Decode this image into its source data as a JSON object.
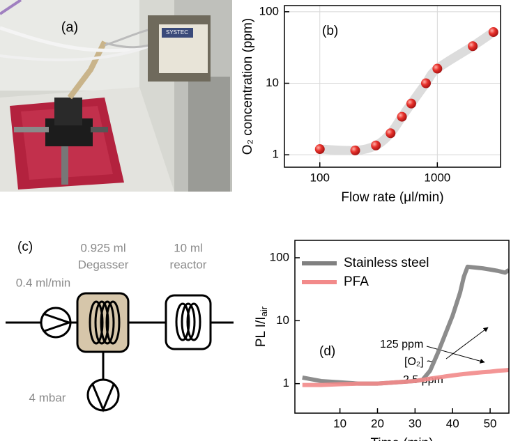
{
  "photo": {
    "label": "(a)",
    "device_label": "SYSTEC"
  },
  "diagram": {
    "label": "(c)",
    "flow": "0.4 ml/min",
    "degasser_volume": "0.925 ml",
    "degasser": "Degasser",
    "reactor_volume": "10 ml",
    "reactor": "reactor",
    "vacuum": "4 mbar"
  },
  "chart_data": [
    {
      "type": "scatter",
      "annotations": [
        "(b)"
      ],
      "xlabel": "Flow rate (μl/min)",
      "ylabel": "O₂ concentration (ppm)",
      "x": [
        100,
        200,
        300,
        400,
        500,
        600,
        800,
        1000,
        2000,
        3000
      ],
      "series": [
        {
          "name": "O₂",
          "color": "#e8322c",
          "values": [
            1.2,
            1.15,
            1.35,
            2,
            3.4,
            5.2,
            10,
            16,
            33,
            52
          ]
        }
      ],
      "fit_color": "#dcdcdc",
      "xscale": "log",
      "yscale": "log",
      "xlim": [
        50,
        3450
      ],
      "ylim": [
        0.67,
        122
      ],
      "xticks": [
        100,
        1000
      ],
      "yticks": [
        1,
        10,
        100
      ],
      "grid": true
    },
    {
      "type": "line",
      "annotations": [
        "(d)",
        "[O₂] ~",
        "2.5 ppm",
        "125 ppm"
      ],
      "xlabel": "Time (min)",
      "ylabel": "PL I/I",
      "ylabel_sub": "air",
      "x": [
        0,
        5,
        10,
        15,
        20,
        25,
        30,
        32,
        34,
        36,
        38,
        40,
        42,
        43,
        44,
        46,
        48,
        50,
        52,
        54,
        55
      ],
      "series": [
        {
          "name": "Stainless steel",
          "color": "#808080",
          "values": [
            1.25,
            1.1,
            1.05,
            1.0,
            1.0,
            1.05,
            1.1,
            1.15,
            1.6,
            3,
            6,
            12,
            28,
            50,
            72,
            70,
            68,
            65,
            62,
            58,
            64
          ]
        },
        {
          "name": "PFA",
          "color": "#f28a8a",
          "values": [
            0.95,
            0.95,
            0.98,
            1.0,
            1.0,
            1.05,
            1.1,
            1.15,
            1.2,
            1.25,
            1.3,
            1.35,
            1.4,
            1.42,
            1.44,
            1.48,
            1.52,
            1.55,
            1.6,
            1.63,
            1.65
          ]
        }
      ],
      "yscale": "log",
      "xlim": [
        -2,
        55
      ],
      "ylim": [
        0.34,
        189
      ],
      "xticks": [
        10,
        20,
        30,
        40,
        50
      ],
      "yticks": [
        1,
        10,
        100
      ],
      "grid": false,
      "legend": "upper left"
    }
  ]
}
